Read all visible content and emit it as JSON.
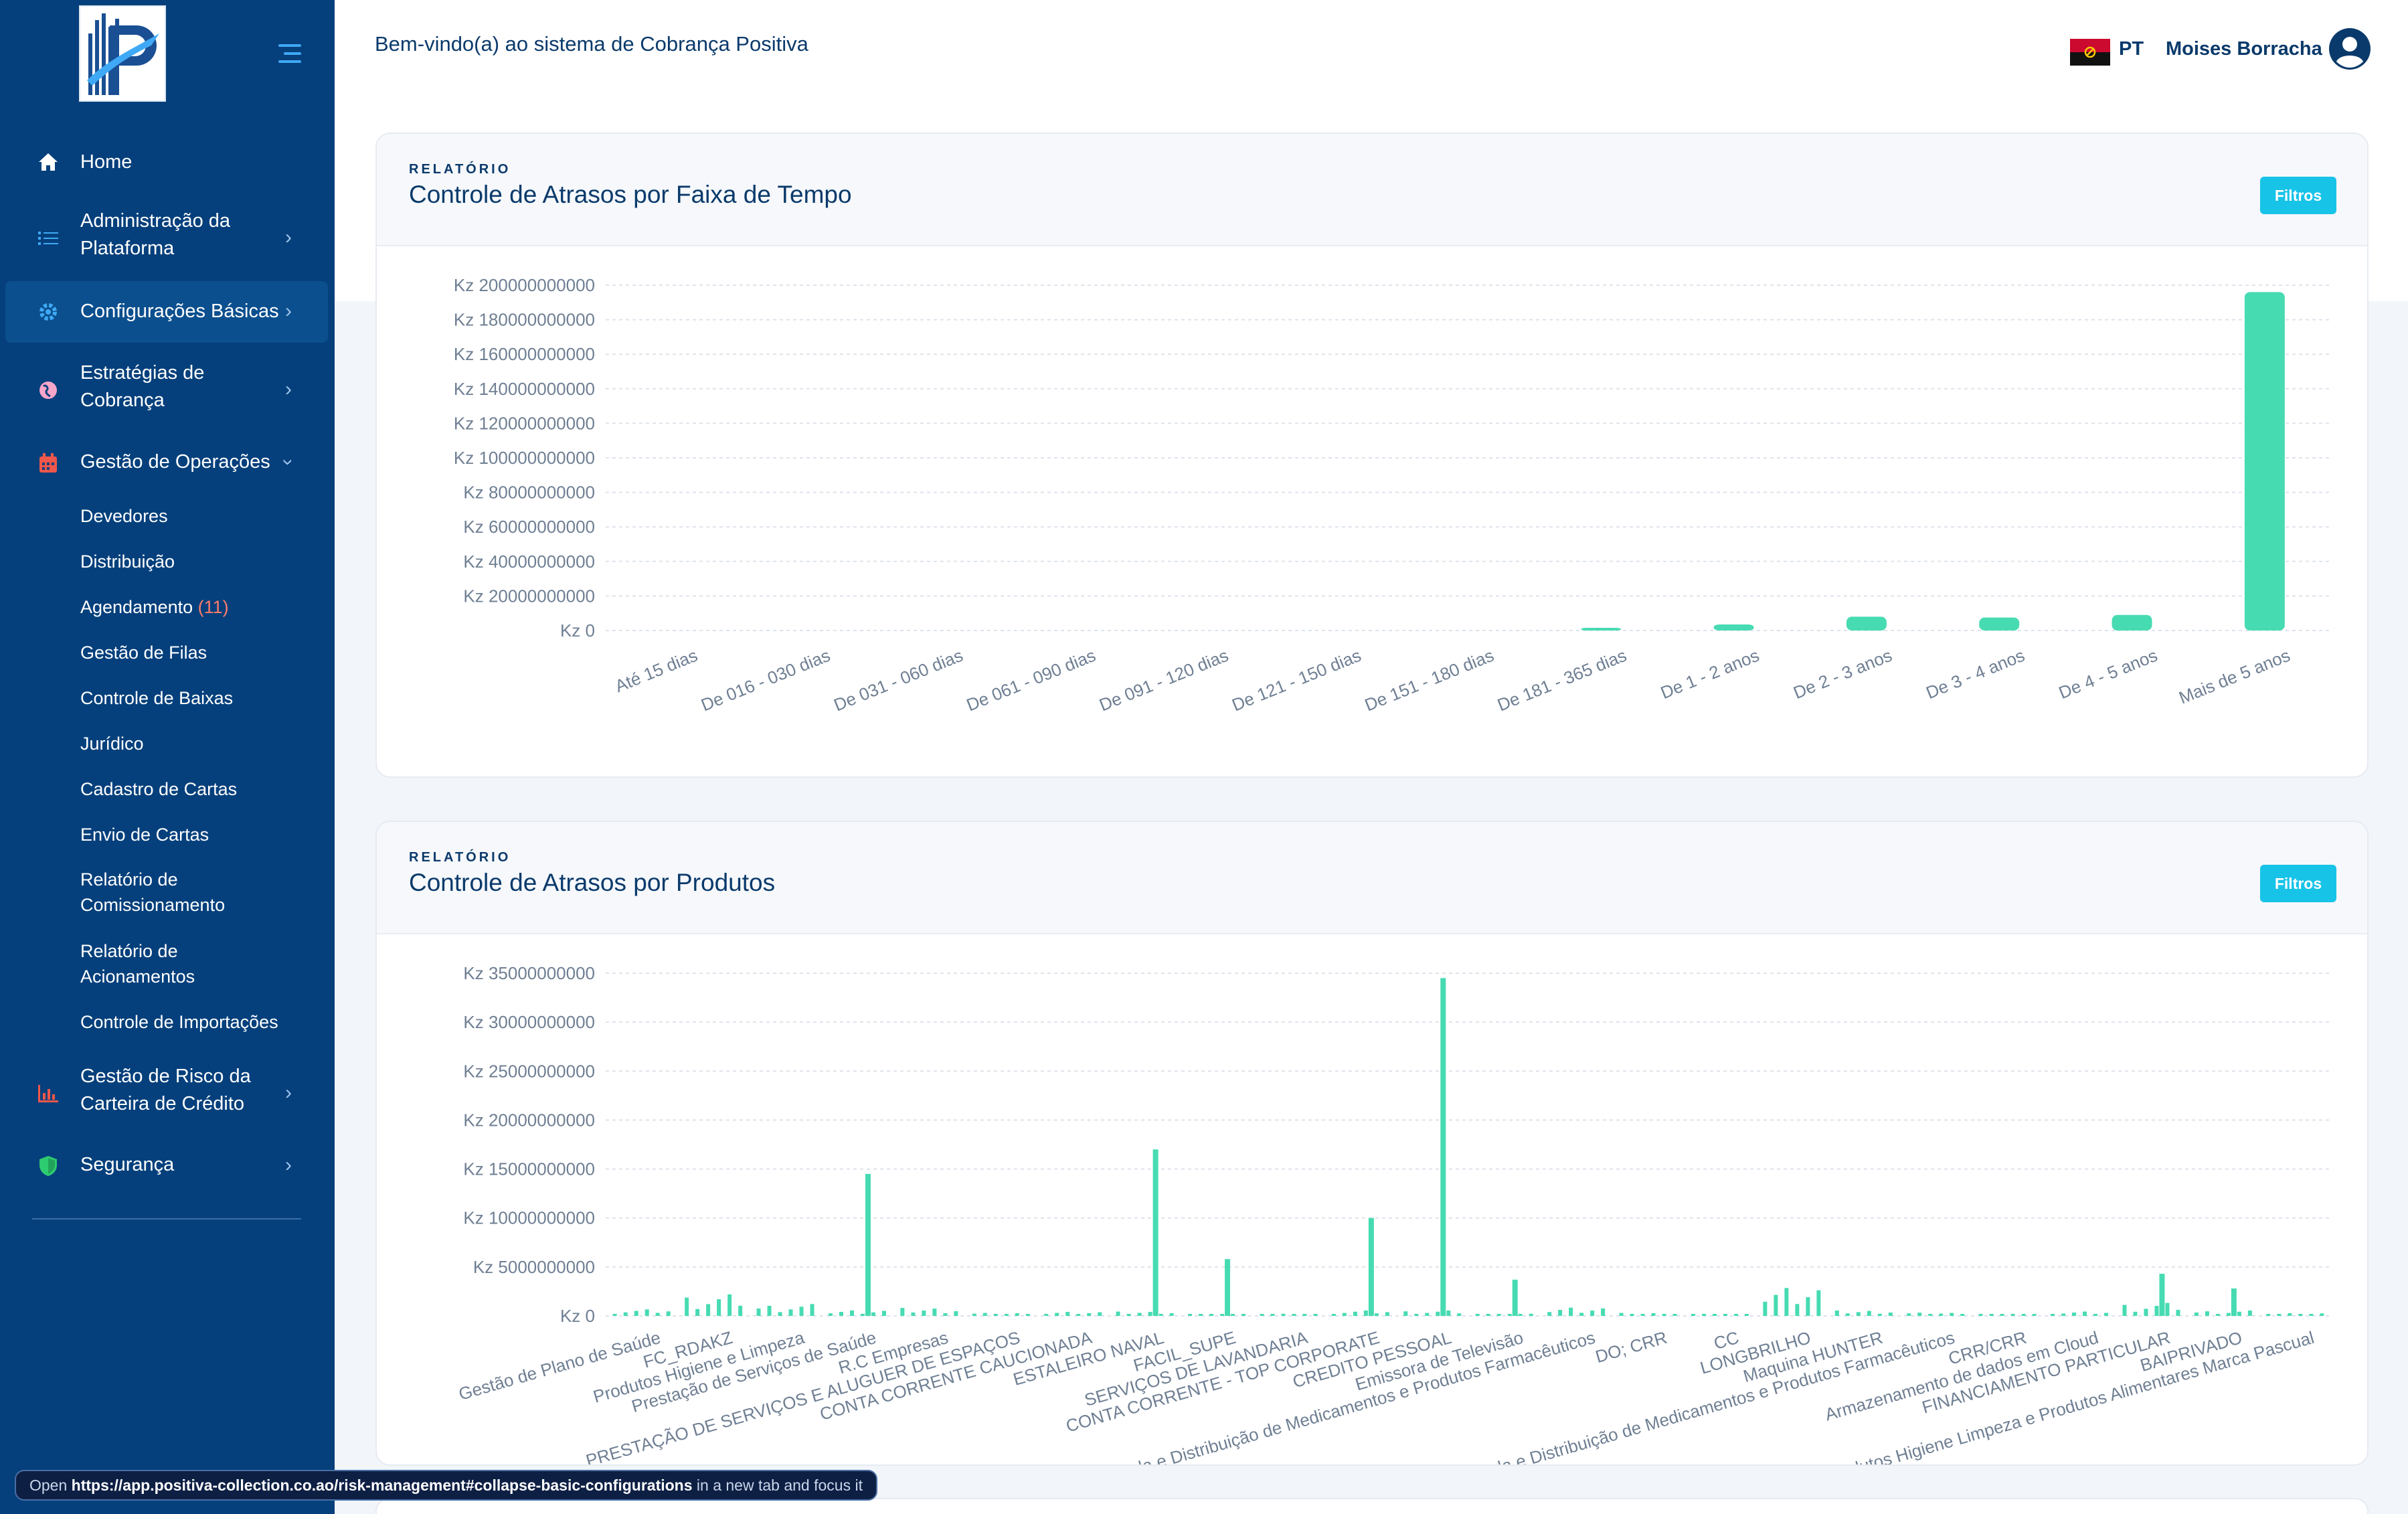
{
  "header": {
    "welcome": "Bem-vindo(a) ao sistema de Cobrança Positiva",
    "language": "PT",
    "user_name": "Moises Borracha"
  },
  "sidebar": {
    "items": [
      {
        "label": "Home",
        "icon": "home-icon"
      },
      {
        "label": "Administração da\nPlataforma",
        "icon": "list-icon"
      },
      {
        "label": "Configurações Básicas",
        "icon": "gear-icon"
      },
      {
        "label": "Estratégias de\nCobrança",
        "icon": "globe-icon"
      },
      {
        "label": "Gestão de Operações",
        "icon": "calendar-icon"
      },
      {
        "label": "Gestão de Risco da\nCarteira de Crédito",
        "icon": "bar-chart-icon"
      },
      {
        "label": "Segurança",
        "icon": "shield-icon"
      }
    ],
    "sub_items": [
      "Devedores",
      "Distribuição",
      "Agendamento",
      "Gestão de Filas",
      "Controle de Baixas",
      "Jurídico",
      "Cadastro de Cartas",
      "Envio de Cartas",
      "Relatório de\nComissionamento",
      "Relatório de\nAcionamentos",
      "Controle de Importações"
    ],
    "agendamento_badge": "(11)"
  },
  "cards": [
    {
      "eyebrow": "RELATÓRIO",
      "title": "Controle de Atrasos por Faixa de Tempo",
      "filter_label": "Filtros"
    },
    {
      "eyebrow": "RELATÓRIO",
      "title": "Controle de Atrasos por Produtos",
      "filter_label": "Filtros"
    }
  ],
  "status_bar": {
    "prefix": "Open",
    "url": "https://app.positiva-collection.co.ao/risk-management#collapse-basic-configurations",
    "suffix": "in a new tab and focus it"
  },
  "colors": {
    "sidebar": "#05407c",
    "bar": "#47dbb2",
    "filter_button": "#18c3e8",
    "title": "#0a3a6b"
  },
  "chart_data": [
    {
      "type": "bar",
      "title": "Controle de Atrasos por Faixa de Tempo",
      "categories": [
        "Até 15 dias",
        "De 016 - 030 dias",
        "De 031 - 060 dias",
        "De 061 - 090 dias",
        "De 091 - 120 dias",
        "De 121 - 150 dias",
        "De 151 - 180 dias",
        "De 181 - 365 dias",
        "De 1 - 2 anos",
        "De 2 - 3 anos",
        "De 3 - 4 anos",
        "De 4 - 5 anos",
        "Mais de 5 anos"
      ],
      "values": [
        0,
        0,
        0,
        0,
        0,
        0,
        0,
        1000000000,
        3500000000,
        8000000000,
        7500000000,
        9000000000,
        196000000000
      ],
      "yticks": [
        "Kz 0",
        "Kz 20000000000",
        "Kz 40000000000",
        "Kz 60000000000",
        "Kz 80000000000",
        "Kz 100000000000",
        "Kz 120000000000",
        "Kz 140000000000",
        "Kz 160000000000",
        "Kz 180000000000",
        "Kz 200000000000"
      ],
      "ylim": [
        0,
        200000000000
      ],
      "grid": true
    },
    {
      "type": "bar",
      "title": "Controle de Atrasos por Produtos",
      "labels": [
        "Gestão de Plano de Saúde",
        "FC_RDAKZ",
        "Produtos Higiene e Limpeza",
        "Prestação de Serviços de Saúde",
        "R.C Empresas",
        "PRESTAÇÃO DE SERVIÇOS E ALUGUER DE ESPAÇOS",
        "CONTA CORRENTE CAUCIONADA",
        "ESTALEIRO NAVAL",
        "FACIL_SUPE",
        "SERVIÇOS DE LAVANDARIA",
        "CONTA CORRENTE - TOP CORPORATE",
        "CREDITO PESSOAL",
        "Emissora de Televisão",
        "Venda e Distribuição de Medicamentos e Produtos Farmacêuticos",
        "DO; CRR",
        "CC",
        "LONGBRILHO",
        "Maquina HUNTER",
        "Venda e Distribuição de Medicamentos e Produtos Farmacêuticos",
        "CRR/CRR",
        "Armazenamento de dados em Cloud",
        "FINANCIAMENTO PARTICULAR",
        "BAIPRIVADO",
        "Venda e Distribuição de Produtos Higiene Limpeza e Produtos Alimentares Marca Pascual"
      ],
      "values": [
        600000000,
        2000000000,
        1100000000,
        600000000,
        800000000,
        300000000,
        400000000,
        400000000,
        100000000,
        200000000,
        500000000,
        500000000,
        200000000,
        900000000,
        300000000,
        100000000,
        2800000000,
        500000000,
        300000000,
        100000000,
        400000000,
        1200000000,
        500000000,
        300000000
      ],
      "peaks": [
        {
          "near": "Prestação de Serviços de Saúde",
          "value": 14500000000
        },
        {
          "near": "ESTALEIRO NAVAL",
          "value": 17000000000
        },
        {
          "near": "FACIL_SUPE",
          "value": 5800000000
        },
        {
          "near": "CONTA CORRENTE - TOP CORPORATE",
          "value": 10000000000
        },
        {
          "near": "CREDITO PESSOAL",
          "value": 34500000000
        },
        {
          "near": "Emissora de Televisão",
          "value": 3700000000
        },
        {
          "near": "FINANCIAMENTO PARTICULAR",
          "value": 4300000000
        },
        {
          "near": "BAIPRIVADO",
          "value": 2800000000
        }
      ],
      "yticks": [
        "Kz 0",
        "Kz 5000000000",
        "Kz 10000000000",
        "Kz 15000000000",
        "Kz 20000000000",
        "Kz 25000000000",
        "Kz 30000000000",
        "Kz 35000000000"
      ],
      "ylim": [
        0,
        35000000000
      ],
      "grid": true
    }
  ]
}
